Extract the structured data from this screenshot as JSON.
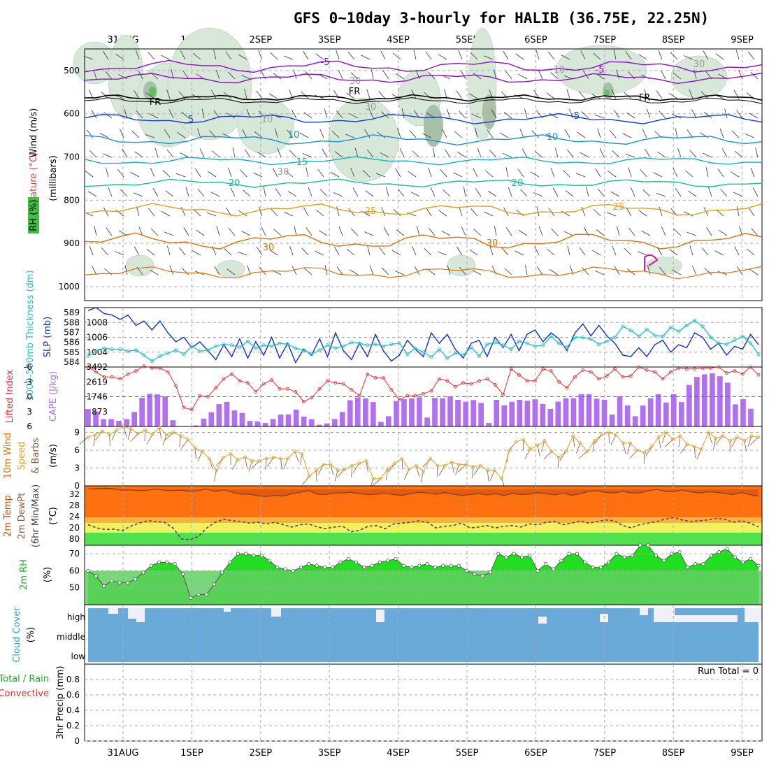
{
  "title": "GFS 0~10day 3-hourly for HALIB (36.75E, 22.25N)",
  "days": [
    "31AUG",
    "1SEP",
    "2SEP",
    "3SEP",
    "4SEP",
    "5SEP",
    "6SEP",
    "7SEP",
    "8SEP",
    "9SEP"
  ],
  "colors": {
    "grid": "#999999",
    "purple": "#8a10c8",
    "blue": "#1040d0",
    "cyan": "#18b0c8",
    "teal": "#10c0a0",
    "gold": "#e0a020",
    "orange": "#e07010",
    "rh": "#a0c8a0",
    "slp": "#1030d0",
    "thick": "#30c0c0",
    "li": "#e03030",
    "cape": "#b070f0",
    "wind": "#e0a030",
    "t2m": "#ff7010",
    "rh2": "#22cc22",
    "cloud": "#6aaad8"
  },
  "upper": {
    "ylabel_wind": "Wind (m/s)",
    "ylabel_temp": "Temperature (°C)",
    "ylabel_rh": "RH (%)",
    "ylabel_units": "(millibars)",
    "levels": [
      "500",
      "600",
      "700",
      "800",
      "900",
      "1000"
    ],
    "iso_labels": [
      "-5",
      "-5",
      "FR",
      "FR",
      "FR",
      "5",
      "5",
      "10",
      "10",
      "15",
      "20",
      "20",
      "25",
      "25",
      "30",
      "30",
      "10",
      "30",
      "30",
      "10",
      "30",
      "30"
    ]
  },
  "chart_data": [
    {
      "type": "line",
      "name": "SLP / Thickness",
      "ylabel_left": "1000-500mb Thickness (dm)",
      "ylabel_right": "SLP (mb)",
      "left_ticks": [
        "589",
        "588",
        "587",
        "586",
        "585",
        "584"
      ],
      "right_ticks": [
        "1008",
        "1006",
        "1004"
      ],
      "ylim_left": [
        583.5,
        589.5
      ],
      "ylim_right": [
        1002,
        1010
      ],
      "series": [
        {
          "name": "SLP",
          "axis": "right",
          "values": [
            1009.6,
            1010,
            1009.2,
            1009,
            1008.4,
            1009,
            1007.6,
            1008.2,
            1007,
            1008.2,
            1006.6,
            1005.4,
            1006,
            1004.6,
            1005.4,
            1004.2,
            1003,
            1005,
            1003.4,
            1005.8,
            1003.2,
            1005.4,
            1003.6,
            1006,
            1003.2,
            1005.2,
            1002.6,
            1004.4,
            1003.6,
            1005.8,
            1003.4,
            1006.6,
            1004.2,
            1003,
            1005.2,
            1003.4,
            1006.4,
            1004.2,
            1002.8,
            1003.6,
            1005.6,
            1004.4,
            1003.4,
            1006.6,
            1005.2,
            1006.4,
            1004.4,
            1003.2,
            1005.2,
            1005.6,
            1003.4,
            1006,
            1004.6,
            1006.4,
            1004.2,
            1006.4,
            1007,
            1005.4,
            1006.6,
            1005.8,
            1004.2,
            1006.6,
            1007.8,
            1006.2,
            1007.6,
            1006.2,
            1005.2,
            1003.6,
            1003.4,
            1004.6,
            1003.4,
            1005,
            1005.6,
            1004,
            1005,
            1004.6,
            1006.6,
            1006,
            1004.4,
            1005.2,
            1003.6,
            1004.8,
            1004.4,
            1006.4,
            1005
          ]
        },
        {
          "name": "Thickness",
          "axis": "left",
          "values": [
            584.6,
            585.1,
            585.4,
            585.3,
            585.3,
            585.1,
            585.2,
            584.7,
            584.1,
            584.6,
            584.9,
            585.2,
            584.8,
            585.6,
            585.1,
            585.2,
            585.6,
            585.8,
            585.7,
            585.5,
            586.1,
            585.4,
            585.7,
            585.6,
            585.9,
            585.8,
            585.4,
            585.2,
            584.8,
            585.2,
            585.7,
            585.4,
            585.6,
            586,
            585.9,
            585.7,
            585.8,
            585.6,
            585.8,
            585.9,
            584.8,
            585.4,
            585,
            584.5,
            585.3,
            584.4,
            584.9,
            584.7,
            585.5,
            584.6,
            585.8,
            586,
            585.7,
            585.3,
            586.1,
            585.9,
            585.6,
            585.7,
            586.6,
            585.9,
            585.5,
            586.5,
            586.5,
            586.3,
            585.8,
            586.1,
            586.5,
            587.6,
            587.2,
            586.6,
            587.3,
            586.7,
            586.6,
            587.5,
            587.1,
            587.7,
            588.2,
            587.6,
            586.5,
            585.9,
            585.8,
            586.2,
            586.6,
            585.9,
            584.8
          ]
        }
      ]
    },
    {
      "type": "bar+line",
      "name": "CAPE / Lifted Index",
      "ylabel_left": "Lifted Index",
      "ylabel_right": "CAPE (J/kg)",
      "left_ticks": [
        "-6",
        "-3",
        "0",
        "3",
        "6"
      ],
      "right_ticks": [
        "3492",
        "2619",
        "1746",
        "873"
      ],
      "ylim_left": [
        -6,
        6
      ],
      "ylim_right": [
        0,
        3492
      ],
      "cape": [
        1020,
        880,
        430,
        430,
        330,
        430,
        850,
        1680,
        1920,
        1880,
        1760,
        360,
        0,
        0,
        60,
        460,
        840,
        1310,
        1440,
        940,
        790,
        330,
        300,
        200,
        440,
        700,
        710,
        990,
        580,
        430,
        100,
        180,
        440,
        850,
        1540,
        1700,
        1660,
        1430,
        270,
        600,
        1500,
        1600,
        1650,
        1710,
        520,
        1680,
        1650,
        1770,
        1560,
        1450,
        1550,
        1380,
        200,
        1560,
        1240,
        1450,
        1560,
        1510,
        1600,
        1320,
        1030,
        1460,
        1660,
        1660,
        1900,
        1900,
        1630,
        1570,
        700,
        1770,
        1230,
        600,
        1230,
        1660,
        1900,
        1410,
        1900,
        1430,
        2440,
        2910,
        3060,
        3120,
        2950,
        2570,
        1300,
        1600,
        1040
      ],
      "li": [
        -6,
        -5,
        -4,
        -4,
        -3.6,
        -4.6,
        -5.2,
        -6.2,
        -5.8,
        -5.8,
        -5,
        -2.2,
        2.2,
        2.6,
        -0.2,
        0,
        -1.8,
        -3.6,
        -4.6,
        -3.2,
        -2.8,
        -1,
        -2.6,
        -3.4,
        -1.6,
        -1.6,
        -1,
        1,
        0.2,
        -1.6,
        -3.2,
        -2.8,
        -2.6,
        -1.4,
        -0.2,
        -4.6,
        -3.8,
        -3.8,
        -1.4,
        0.6,
        -0.2,
        -0.2,
        -0.6,
        -1.2,
        -3.6,
        -3.2,
        -2,
        -2.8,
        -2.6,
        -3.2,
        -3.6,
        -2.4,
        -0.4,
        -5.6,
        -4.4,
        -3.2,
        -3.2,
        -5.6,
        -5.2,
        -3,
        -1.8,
        -4,
        -5.4,
        -5,
        -3.6,
        -4.2,
        -5.6,
        -4,
        -4.2,
        -6,
        -5.4,
        -5,
        -3.6,
        -5,
        -5.8,
        -5.6,
        -5.6,
        -5.8,
        -5.8,
        -6,
        -4.8,
        -5.2,
        -4.6,
        -6,
        -4.4
      ]
    },
    {
      "type": "line",
      "name": "10m Wind",
      "ylabel": "10m Wind Speed & Barbs (m/s)",
      "ticks": [
        "9",
        "6",
        "3",
        "0"
      ],
      "ylim": [
        0,
        10
      ],
      "values": [
        8.2,
        8.6,
        9.2,
        8.6,
        9.4,
        10,
        9.6,
        8.8,
        9.4,
        8.6,
        9.8,
        8.6,
        9,
        8.4,
        7.8,
        6.4,
        5.8,
        4.6,
        2.6,
        4.8,
        5.4,
        4.4,
        4.8,
        4.2,
        4.2,
        4.6,
        4.8,
        4.6,
        4.6,
        5.8,
        5.4,
        1.6,
        2.6,
        3.6,
        3.6,
        2.6,
        2.8,
        3.4,
        3.8,
        4.2,
        1.2,
        1.2,
        2.8,
        3.8,
        4.6,
        2.8,
        3.4,
        2.4,
        4.6,
        3.4,
        3.4,
        4,
        3.6,
        3.6,
        3.2,
        3.4,
        2.6,
        2.6,
        1.2,
        5.8,
        7.4,
        7.8,
        6.2,
        6.8,
        7.6,
        5.8,
        4.8,
        5.8,
        8.4,
        7.2,
        5.8,
        7.6,
        8.6,
        9,
        8.6,
        7.2,
        7.2,
        6,
        5.6,
        6.6,
        8.2,
        9,
        7.8,
        8.4,
        7,
        6.6,
        6.2,
        9,
        8,
        8.4,
        7.6,
        8.2,
        7.6,
        8.4,
        8.2
      ]
    },
    {
      "type": "line",
      "name": "2m Temp / DewPt",
      "ylabel": "2m Temp 2m DewPt (6hr Min/Max) (°C)",
      "ticks": [
        "32",
        "28",
        "24",
        "20",
        "80"
      ],
      "ylim": [
        18,
        33
      ],
      "temp": [
        32.2,
        32.3,
        32.4,
        32.3,
        31.9,
        32,
        31.8,
        31.9,
        32.2,
        31.9,
        31.8,
        31.9,
        31.6,
        31.8,
        32.2,
        31.6,
        32,
        31.4,
        30.9,
        30.9,
        30.5,
        30.3,
        30.6,
        30.4,
        31,
        31.4,
        31.8,
        30.9,
        30.8,
        31.2,
        31.2,
        31.4,
        31,
        30.8,
        30.9,
        31.2,
        30.8,
        30.6,
        31,
        31.4,
        31.2,
        30.9,
        31.3,
        30.9,
        30.6,
        30.8,
        31,
        30.7,
        31,
        30.6,
        31.1,
        30.8,
        30.9,
        31.3,
        31,
        30.7,
        31.2,
        30.6,
        31,
        31.6,
        31.8,
        31.3,
        31.2,
        31.6,
        31.2,
        31.2,
        31.8,
        32.1,
        31.6,
        31.5,
        32,
        31.5,
        31.2,
        31.5,
        31.4,
        31.1,
        30.8,
        31.3,
        30.8,
        30.4
      ],
      "dew": [
        23.2,
        22.4,
        22,
        22.1,
        21.7,
        22.8,
        23.6,
        24.2,
        24,
        23.8,
        22.4,
        19.6,
        19.4,
        20.2,
        22.4,
        23.8,
        24.6,
        24.2,
        24,
        23.6,
        23.8,
        23.4,
        23.8,
        23.2,
        22.6,
        23.2,
        23.4,
        22.6,
        22.2,
        22.6,
        22.8,
        21.4,
        21.8,
        22.8,
        23,
        22.2,
        23.4,
        23.6,
        23.8,
        24.2,
        23.8,
        22.4,
        22.8,
        23,
        23.6,
        22.4,
        22.6,
        23,
        22.4,
        22.8,
        23,
        22.6,
        23.4,
        23.2,
        23.8,
        24,
        23.2,
        23.6,
        24.2,
        23.6,
        24,
        24.4,
        24.2,
        23,
        22.4,
        23.2,
        23.6,
        24,
        24.6,
        25,
        24.4,
        24,
        24.2,
        24.4,
        24.8,
        24.6,
        23.8,
        24.2,
        23.6,
        22.6
      ]
    },
    {
      "type": "area",
      "name": "2m RH",
      "ylabel": "2m RH (%)",
      "ticks": [
        "70",
        "60",
        "50"
      ],
      "ylim": [
        40,
        75
      ],
      "values": [
        60,
        57,
        51,
        54,
        53,
        53,
        55,
        59,
        63,
        65,
        65,
        64,
        58,
        44,
        46,
        46,
        52,
        59,
        65,
        70,
        70,
        69,
        69,
        66,
        62,
        61,
        60,
        62,
        64,
        63,
        62,
        62,
        65,
        67,
        65,
        62,
        63,
        65,
        66,
        67,
        63,
        62,
        63,
        64,
        62,
        63,
        63,
        63,
        60,
        58,
        57,
        59,
        70,
        68,
        70,
        68,
        69,
        60,
        64,
        61,
        66,
        70,
        70,
        65,
        62,
        62,
        65,
        70,
        68,
        69,
        75,
        75,
        69,
        66,
        70,
        71,
        62,
        64,
        64,
        69,
        71,
        73,
        68,
        65,
        67,
        63
      ]
    },
    {
      "type": "area",
      "name": "Cloud Cover",
      "ylabel": "Cloud Cover (%)",
      "ticks": [
        "high",
        "middle",
        "low"
      ],
      "note": "near-full cover throughout"
    },
    {
      "type": "bar",
      "name": "3hr Precip",
      "ylabel": "3hr Precip (mm)",
      "legend_total": "Total / Rain",
      "legend_conv": "Convective",
      "ticks": [
        "0.8",
        "0.6",
        "0.4",
        "0.2",
        "0"
      ],
      "ylim": [
        0,
        1
      ],
      "run_total": "Run Total = 0",
      "values": []
    }
  ]
}
